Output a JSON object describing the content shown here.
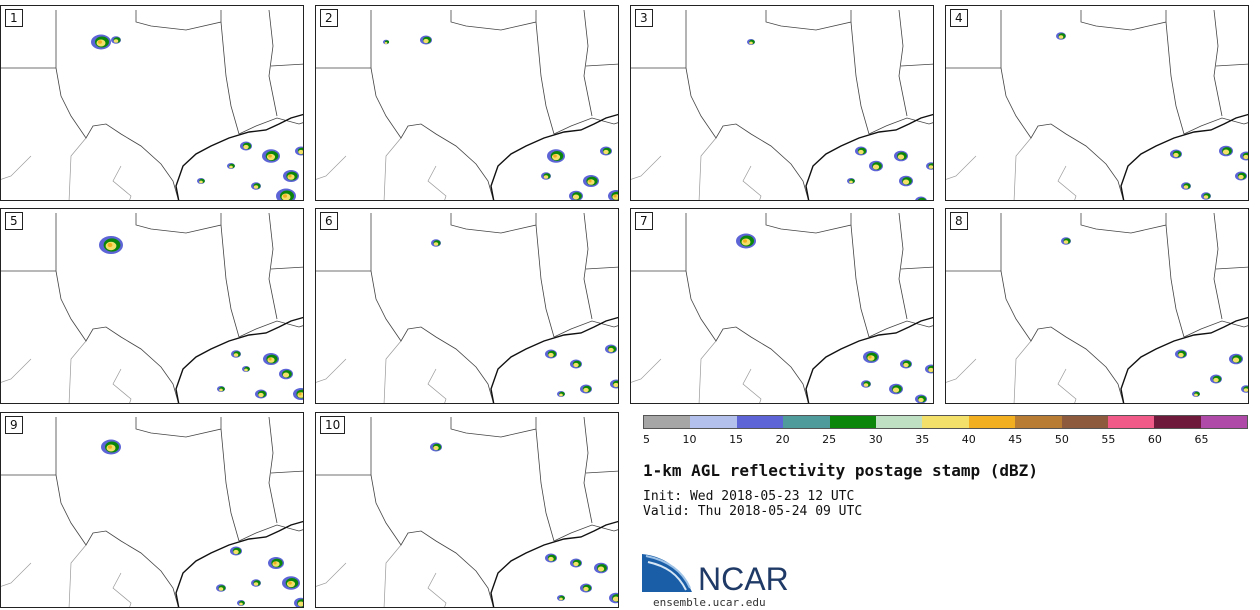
{
  "figure": {
    "title": "1-km AGL reflectivity postage stamp (dBZ)",
    "init_label": "Init:",
    "init_value": "Wed 2018-05-23 12 UTC",
    "valid_label": "Valid:",
    "valid_value": "Thu 2018-05-24 09 UTC"
  },
  "panels": [
    {
      "label": "1"
    },
    {
      "label": "2"
    },
    {
      "label": "3"
    },
    {
      "label": "4"
    },
    {
      "label": "5"
    },
    {
      "label": "6"
    },
    {
      "label": "7"
    },
    {
      "label": "8"
    },
    {
      "label": "9"
    },
    {
      "label": "10"
    }
  ],
  "colorbar": {
    "ticks": [
      "5",
      "10",
      "15",
      "20",
      "25",
      "30",
      "35",
      "40",
      "45",
      "50",
      "55",
      "60",
      "65"
    ],
    "colors": [
      "#a6a6a6",
      "#b4c0ec",
      "#5c64d6",
      "#4f9a9a",
      "#0b860b",
      "#bfe0c2",
      "#f2e06a",
      "#f2b020",
      "#b87d32",
      "#8e5a3e",
      "#f05a88",
      "#6e1a3a",
      "#b04aa8"
    ]
  },
  "logo": {
    "text": "NCAR",
    "url": "ensemble.ucar.edu",
    "colors": {
      "blue": "#1a5ea8",
      "dark": "#1f3a66"
    }
  }
}
